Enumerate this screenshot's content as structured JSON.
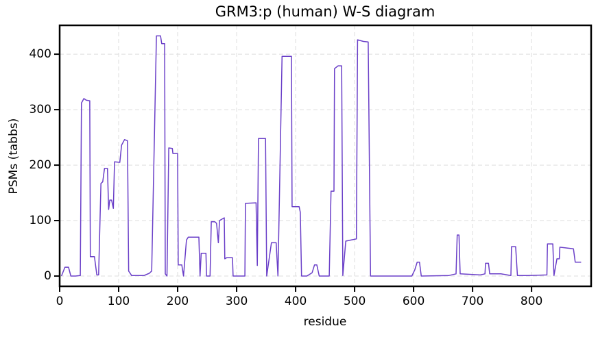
{
  "chart_data": {
    "type": "line",
    "title": "GRM3:p (human) W-S diagram",
    "x_label": "residue",
    "y_label": "PSMs (tabbs)",
    "color": "#6a3fc8",
    "grid": true,
    "xlim": [
      0,
      901
    ],
    "ylim": [
      -18.5,
      452
    ],
    "xticks": [
      0,
      100,
      200,
      300,
      400,
      500,
      600,
      700,
      800
    ],
    "yticks": [
      0,
      100,
      200,
      300,
      400
    ],
    "x": [
      3,
      9,
      15,
      19,
      27,
      35,
      37,
      41,
      45,
      51,
      52,
      59,
      63,
      66,
      70,
      73,
      76,
      81,
      83,
      85,
      88,
      91,
      93,
      102,
      105,
      110,
      115,
      117,
      122,
      143,
      152,
      156,
      164,
      171,
      173,
      178,
      179,
      182,
      185,
      191,
      192,
      200,
      201,
      207,
      210,
      215,
      218,
      236,
      238,
      240,
      248,
      249,
      255,
      257,
      263,
      266,
      269,
      271,
      279,
      280,
      283,
      293,
      294,
      314,
      315,
      333,
      335,
      337,
      349,
      351,
      359,
      367,
      370,
      377,
      393,
      394,
      406,
      408,
      410,
      419,
      428,
      432,
      436,
      440,
      457,
      460,
      465,
      466,
      472,
      478,
      480,
      485,
      494,
      503,
      505,
      515,
      523,
      527,
      550,
      597,
      602,
      606,
      610,
      613,
      660,
      672,
      674,
      677,
      679,
      713,
      721,
      722,
      727,
      729,
      748,
      765,
      766,
      773,
      776,
      794,
      826,
      827,
      836,
      838,
      843,
      847,
      848,
      871,
      874,
      884
    ],
    "values": [
      0,
      16,
      16,
      0,
      0,
      1,
      312,
      320,
      317,
      316,
      35,
      35,
      2,
      2,
      167,
      170,
      194,
      194,
      120,
      137,
      137,
      122,
      206,
      205,
      236,
      246,
      244,
      9,
      1,
      1,
      5,
      9,
      433,
      433,
      419,
      419,
      4,
      0,
      231,
      230,
      221,
      221,
      20,
      20,
      0,
      65,
      70,
      70,
      0,
      41,
      41,
      0,
      0,
      98,
      98,
      95,
      60,
      100,
      105,
      31,
      33,
      33,
      0,
      0,
      131,
      132,
      19,
      248,
      248,
      0,
      60,
      60,
      0,
      396,
      396,
      125,
      125,
      115,
      0,
      0,
      6,
      20,
      20,
      0,
      0,
      153,
      153,
      374,
      379,
      379,
      1,
      63,
      65,
      67,
      426,
      423,
      422,
      0,
      0,
      0,
      11,
      25,
      25,
      0,
      1,
      4,
      74,
      74,
      4,
      2,
      4,
      23,
      23,
      4,
      4,
      1,
      53,
      53,
      1,
      1,
      2,
      58,
      58,
      1,
      31,
      31,
      52,
      49,
      25,
      25
    ]
  }
}
